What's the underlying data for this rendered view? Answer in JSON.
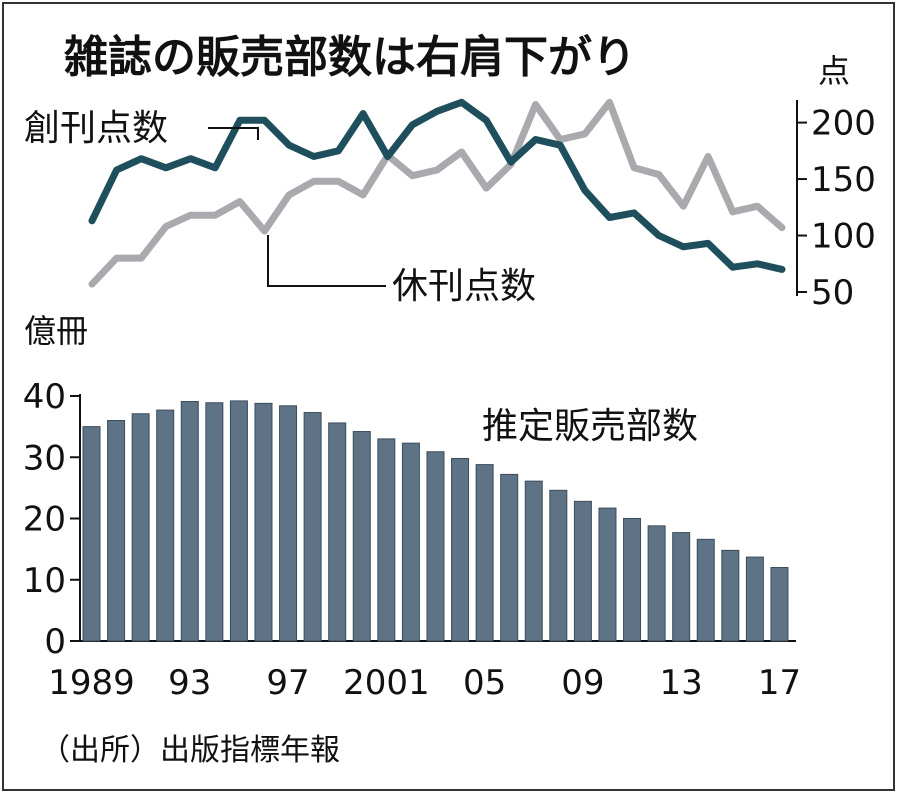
{
  "title": "雑誌の販売部数は右肩下がり",
  "source": "（出所）出版指標年報",
  "chart_data": [
    {
      "type": "line",
      "unit": "点",
      "ylim": [
        50,
        220
      ],
      "yticks": [
        "50",
        "100",
        "150",
        "200"
      ],
      "x": [
        1989,
        1990,
        1991,
        1992,
        1993,
        1994,
        1995,
        1996,
        1997,
        1998,
        1999,
        2000,
        2001,
        2002,
        2003,
        2004,
        2005,
        2006,
        2007,
        2008,
        2009,
        2010,
        2011,
        2012,
        2013,
        2014,
        2015,
        2016,
        2017
      ],
      "series": [
        {
          "name": "創刊点数",
          "color": "#1f4f5c",
          "values": [
            113,
            158,
            168,
            160,
            168,
            160,
            202,
            202,
            180,
            170,
            175,
            208,
            170,
            198,
            210,
            218,
            202,
            165,
            185,
            180,
            140,
            116,
            120,
            100,
            90,
            93,
            72,
            75,
            70
          ]
        },
        {
          "name": "休刊点数",
          "color": "#a9a9ae",
          "values": [
            57,
            80,
            80,
            108,
            118,
            118,
            130,
            104,
            136,
            148,
            148,
            136,
            171,
            153,
            158,
            174,
            142,
            163,
            216,
            185,
            190,
            218,
            160,
            154,
            126,
            170,
            121,
            126,
            107
          ]
        }
      ]
    },
    {
      "type": "bar",
      "unit": "億冊",
      "label": "推定販売部数",
      "color": "#5e7386",
      "ylim": [
        0,
        40
      ],
      "yticks": [
        "0",
        "10",
        "20",
        "30",
        "40"
      ],
      "categories": [
        1989,
        1990,
        1991,
        1992,
        1993,
        1994,
        1995,
        1996,
        1997,
        1998,
        1999,
        2000,
        2001,
        2002,
        2003,
        2004,
        2005,
        2006,
        2007,
        2008,
        2009,
        2010,
        2011,
        2012,
        2013,
        2014,
        2015,
        2016,
        2017
      ],
      "tick_labels": [
        "1989",
        "93",
        "97",
        "2001",
        "05",
        "09",
        "13",
        "17"
      ],
      "values": [
        35.0,
        36.0,
        37.1,
        37.7,
        39.1,
        38.9,
        39.2,
        38.8,
        38.4,
        37.3,
        35.6,
        34.2,
        33.0,
        32.3,
        30.9,
        29.8,
        28.8,
        27.2,
        26.1,
        24.6,
        22.8,
        21.7,
        20.0,
        18.8,
        17.7,
        16.6,
        14.8,
        13.7,
        12.0
      ]
    }
  ]
}
